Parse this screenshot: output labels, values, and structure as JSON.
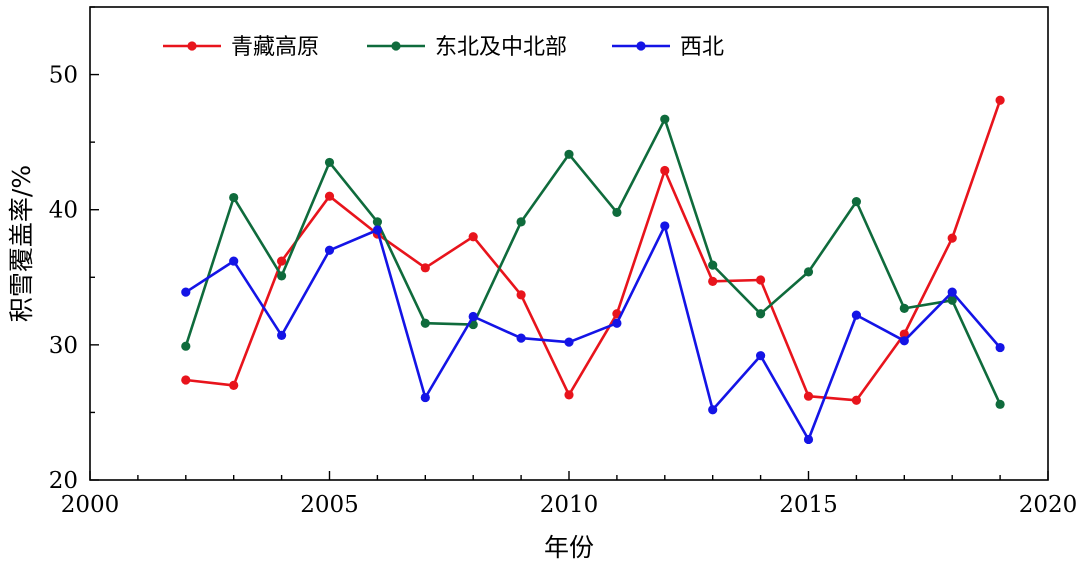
{
  "chart_data": {
    "type": "line",
    "xlabel": "年份",
    "ylabel": "积雪覆盖率/%",
    "xlim": [
      2000,
      2020
    ],
    "ylim": [
      20,
      55
    ],
    "xticks": [
      2000,
      2005,
      2010,
      2015,
      2020
    ],
    "yticks": [
      20,
      30,
      40,
      50
    ],
    "legend_position": "top-left",
    "x": [
      2002,
      2003,
      2004,
      2005,
      2006,
      2007,
      2008,
      2009,
      2010,
      2011,
      2012,
      2013,
      2014,
      2015,
      2016,
      2017,
      2018,
      2019
    ],
    "series": [
      {
        "name": "青藏高原",
        "color": "#e8141c",
        "values": [
          27.4,
          27.0,
          36.2,
          41.0,
          38.2,
          35.7,
          38.0,
          33.7,
          26.3,
          32.3,
          42.9,
          34.7,
          34.8,
          26.2,
          25.9,
          30.8,
          37.9,
          48.1
        ]
      },
      {
        "name": "东北及中北部",
        "color": "#0f6b3c",
        "values": [
          29.9,
          40.9,
          35.1,
          43.5,
          39.1,
          31.6,
          31.5,
          39.1,
          44.1,
          39.8,
          46.7,
          35.9,
          32.3,
          35.4,
          40.6,
          32.7,
          33.3,
          25.6
        ]
      },
      {
        "name": "西北",
        "color": "#1414e6",
        "values": [
          33.9,
          36.2,
          30.7,
          37.0,
          38.5,
          26.1,
          32.1,
          30.5,
          30.2,
          31.6,
          38.8,
          25.2,
          29.2,
          23.0,
          32.2,
          30.3,
          33.9,
          29.8
        ]
      }
    ]
  }
}
